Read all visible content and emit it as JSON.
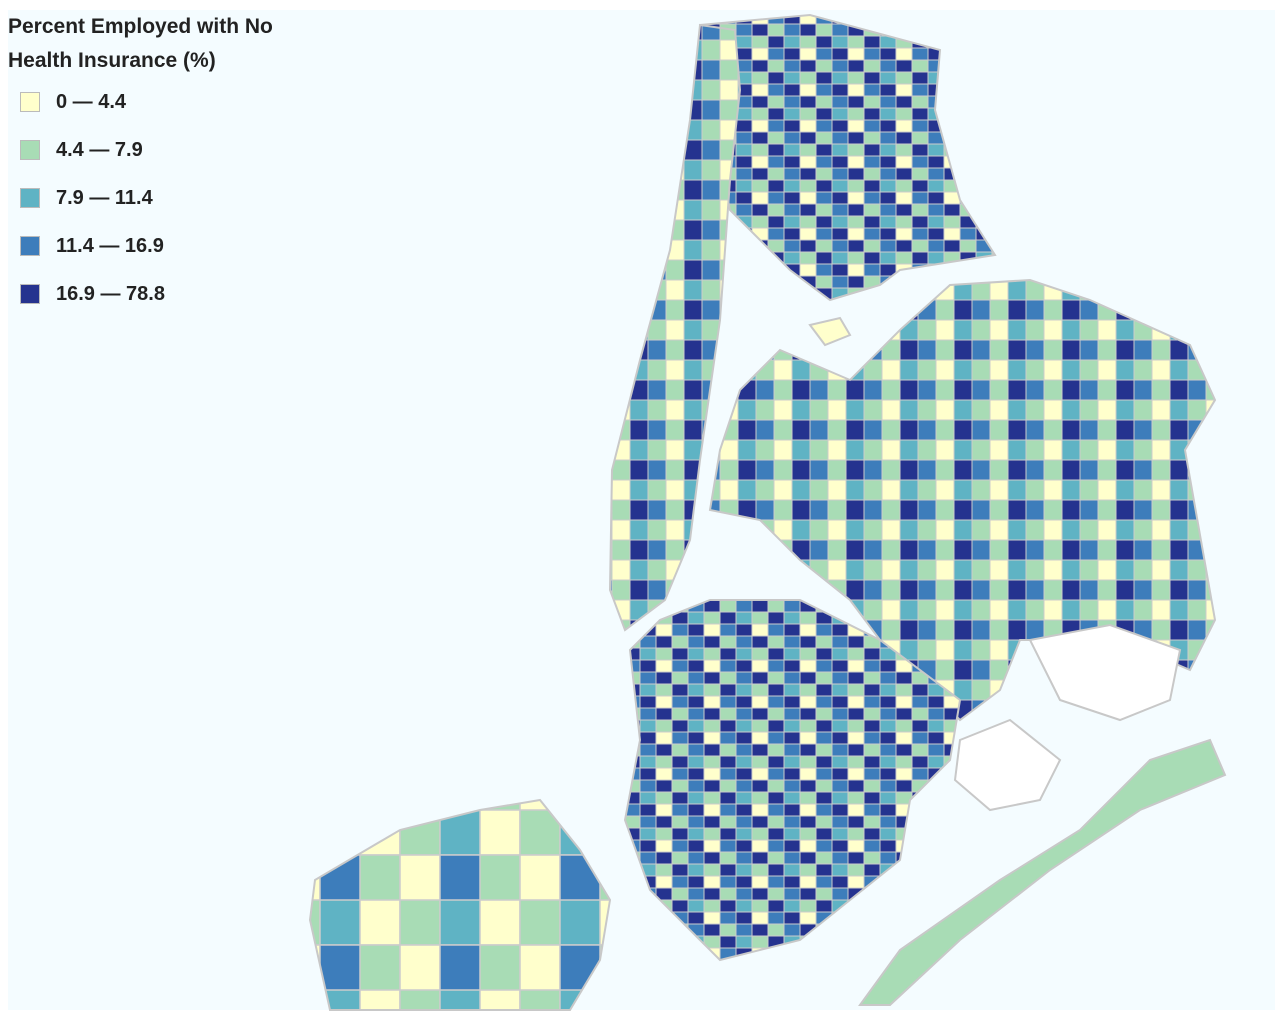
{
  "legend": {
    "title": [
      "Percent Employed with No",
      "Health Insurance (%)"
    ],
    "items": [
      {
        "label": "0 — 4.4",
        "color": "#ffffcc"
      },
      {
        "label": "4.4 — 7.9",
        "color": "#a8dcb5"
      },
      {
        "label": "7.9 — 11.4",
        "color": "#5fb3c4"
      },
      {
        "label": "11.4 — 16.9",
        "color": "#3d7dbb"
      },
      {
        "label": "16.9 — 78.8",
        "color": "#25338f"
      }
    ]
  }
}
